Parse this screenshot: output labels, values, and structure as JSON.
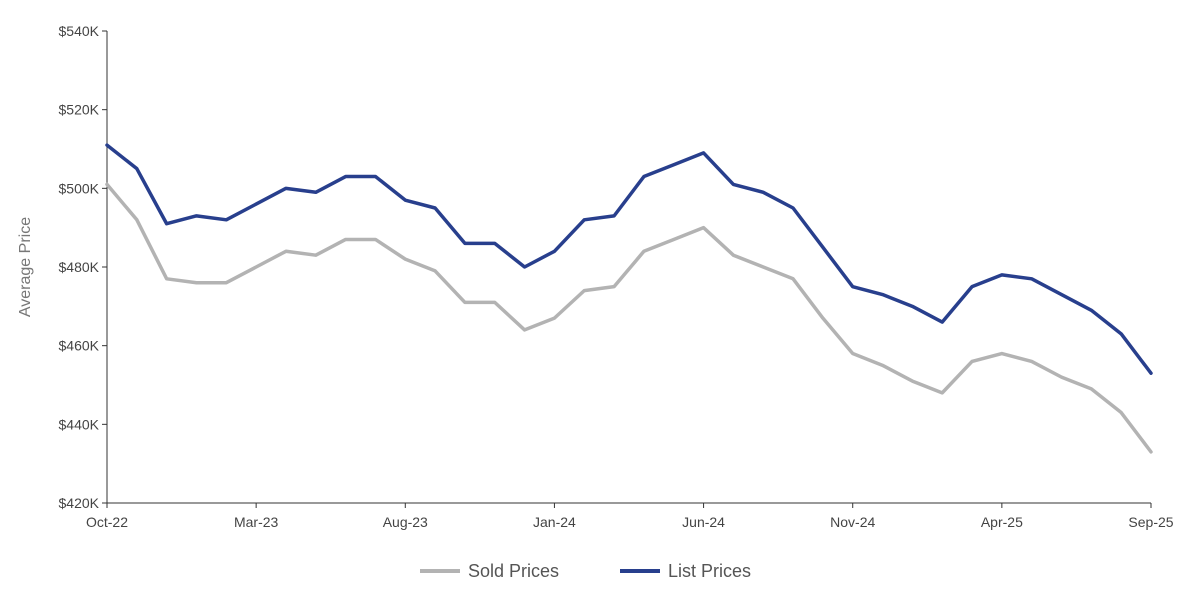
{
  "chart_data": {
    "type": "line",
    "title": "",
    "xlabel": "",
    "ylabel": "Average Price",
    "ylim": [
      420000,
      540000
    ],
    "y_ticks": [
      420000,
      440000,
      460000,
      480000,
      500000,
      520000,
      540000
    ],
    "y_tick_labels": [
      "$420K",
      "$440K",
      "$460K",
      "$480K",
      "$500K",
      "$520K",
      "$540K"
    ],
    "x": [
      "Oct-22",
      "Nov-22",
      "Dec-22",
      "Jan-23",
      "Feb-23",
      "Mar-23",
      "Apr-23",
      "May-23",
      "Jun-23",
      "Jul-23",
      "Aug-23",
      "Sep-23",
      "Oct-23",
      "Nov-23",
      "Dec-23",
      "Jan-24",
      "Feb-24",
      "Mar-24",
      "Apr-24",
      "May-24",
      "Jun-24",
      "Jul-24",
      "Aug-24",
      "Sep-24",
      "Oct-24",
      "Nov-24",
      "Dec-24",
      "Jan-25",
      "Feb-25",
      "Mar-25",
      "Apr-25",
      "May-25",
      "Jun-25",
      "Jul-25",
      "Aug-25",
      "Sep-25"
    ],
    "x_tick_labels": [
      "Oct-22",
      "Mar-23",
      "Aug-23",
      "Jan-24",
      "Jun-24",
      "Nov-24",
      "Apr-25",
      "Sep-25"
    ],
    "grid": false,
    "legend_position": "bottom-center",
    "series": [
      {
        "name": "Sold Prices",
        "color": "#b3b3b3",
        "values": [
          501000,
          492000,
          477000,
          476000,
          476000,
          480000,
          484000,
          483000,
          487000,
          487000,
          482000,
          479000,
          471000,
          471000,
          464000,
          467000,
          474000,
          475000,
          484000,
          487000,
          490000,
          483000,
          480000,
          477000,
          467000,
          458000,
          455000,
          451000,
          448000,
          456000,
          458000,
          456000,
          452000,
          449000,
          443000,
          433000
        ]
      },
      {
        "name": "List Prices",
        "color": "#283f8d",
        "values": [
          511000,
          505000,
          491000,
          493000,
          492000,
          496000,
          500000,
          499000,
          503000,
          503000,
          497000,
          495000,
          486000,
          486000,
          480000,
          484000,
          492000,
          493000,
          503000,
          506000,
          509000,
          501000,
          499000,
          495000,
          485000,
          475000,
          473000,
          470000,
          466000,
          475000,
          478000,
          477000,
          473000,
          469000,
          463000,
          453000
        ]
      }
    ]
  }
}
